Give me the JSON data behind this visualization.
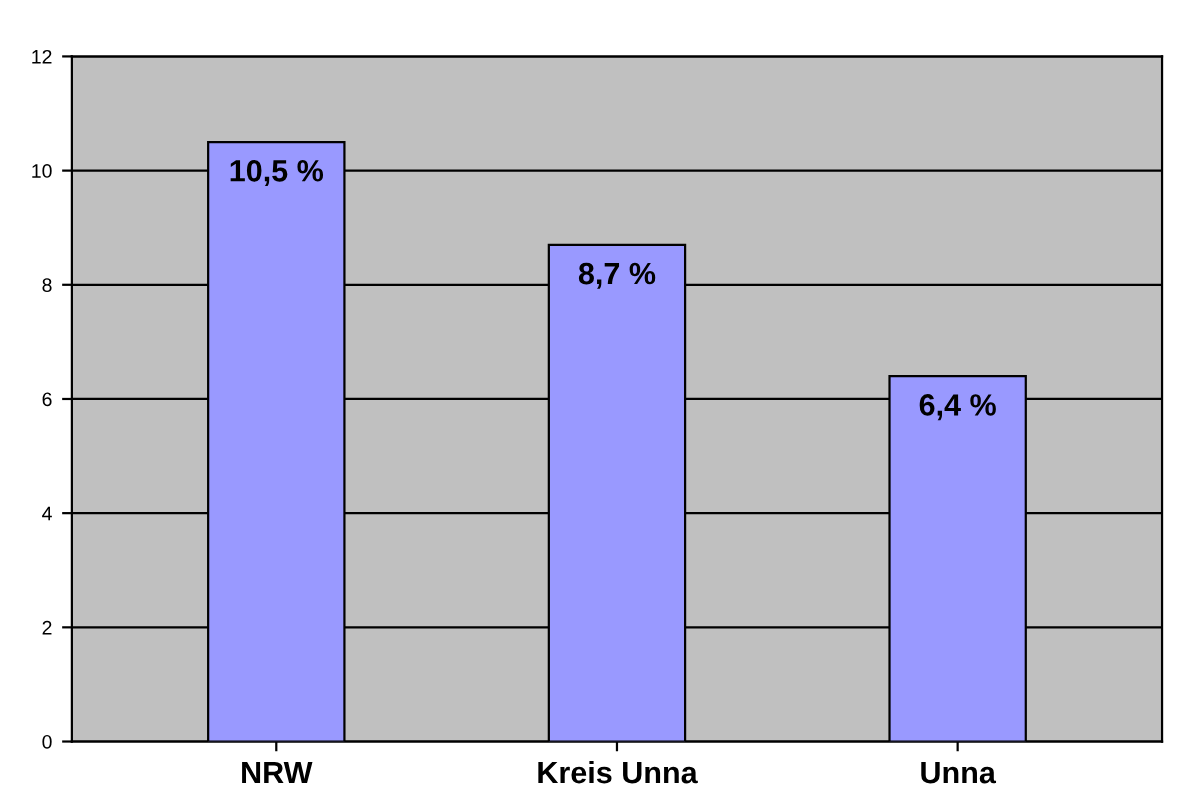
{
  "chart_data": {
    "type": "bar",
    "categories": [
      "NRW",
      "Kreis Unna",
      "Unna"
    ],
    "values": [
      10.5,
      8.7,
      6.4
    ],
    "value_labels": [
      "10,5 %",
      "8,7 %",
      "6,4 %"
    ],
    "color": "#9999ff",
    "ylim": [
      0,
      12
    ],
    "yticks": [
      0,
      2,
      4,
      6,
      8,
      10,
      12
    ],
    "grid": "y"
  }
}
